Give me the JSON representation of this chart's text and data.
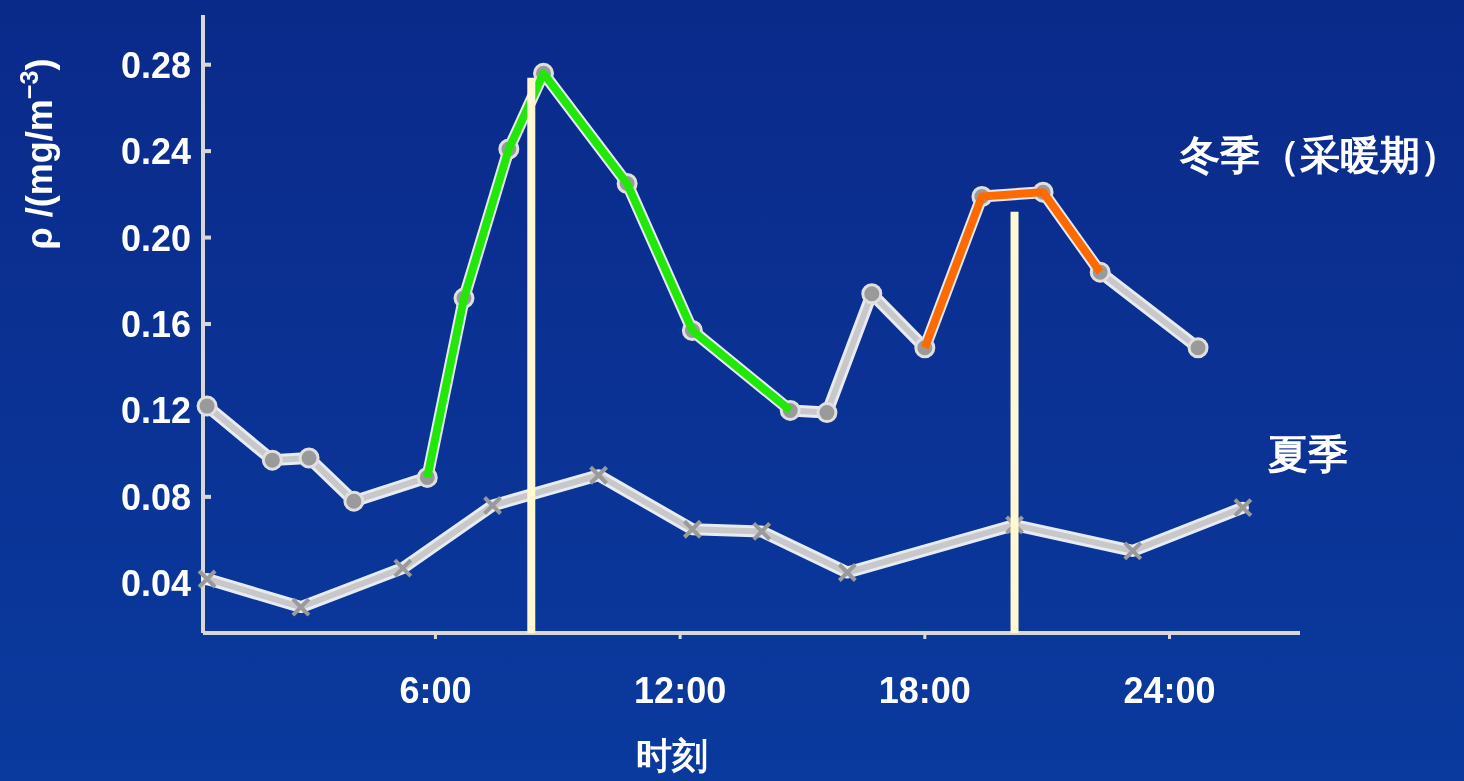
{
  "chart_data": {
    "type": "line",
    "xlabel": "时刻",
    "ylabel": "ρ /(mg/m$^{−3}$)",
    "xlim": [
      0.3,
      27.2
    ],
    "ylim": [
      0.017,
      0.303
    ],
    "xticks": [
      {
        "value": 6,
        "label": "6:00"
      },
      {
        "value": 12,
        "label": "12:00"
      },
      {
        "value": 18,
        "label": "18:00"
      },
      {
        "value": 24,
        "label": "24:00"
      }
    ],
    "yticks": [
      0.04,
      0.08,
      0.12,
      0.16,
      {
        "value": 0.2,
        "label": "0.20"
      },
      0.24,
      0.28
    ],
    "grid": false,
    "series": [
      {
        "name": "冬季（采暖期）",
        "color": "#c8c8c8",
        "marker": "circle",
        "x": [
          0.4,
          2.0,
          2.9,
          4.0,
          5.8,
          6.7,
          7.8,
          8.65,
          10.7,
          12.3,
          14.7,
          15.6,
          16.7,
          18.0,
          19.4,
          20.9,
          22.3,
          24.7
        ],
        "values": [
          0.122,
          0.097,
          0.098,
          0.078,
          0.089,
          0.172,
          0.241,
          0.276,
          0.225,
          0.157,
          0.12,
          0.119,
          0.174,
          0.149,
          0.219,
          0.221,
          0.184,
          0.149
        ]
      },
      {
        "name": "夏季",
        "color": "#c8c8c8",
        "marker": "cross",
        "x": [
          0.4,
          2.7,
          5.2,
          7.4,
          10.0,
          12.3,
          14.0,
          16.1,
          20.2,
          23.1,
          25.8
        ],
        "values": [
          0.042,
          0.029,
          0.047,
          0.076,
          0.09,
          0.065,
          0.064,
          0.045,
          0.067,
          0.055,
          0.075
        ]
      },
      {
        "color": "#22e80a",
        "marker": "none",
        "x": [
          5.8,
          6.7,
          7.8,
          8.65,
          10.7,
          12.3,
          14.7
        ],
        "values": [
          0.089,
          0.172,
          0.241,
          0.276,
          0.225,
          0.157,
          0.12
        ]
      },
      {
        "color": "#ff6a00",
        "marker": "none",
        "x": [
          18.0,
          19.4,
          20.9,
          22.3
        ],
        "values": [
          0.149,
          0.219,
          0.221,
          0.184
        ]
      },
      {
        "color": "#fff8d0",
        "marker": "none",
        "x": [
          8.35,
          8.35
        ],
        "values": [
          0.017,
          0.274
        ]
      },
      {
        "color": "#fff8d0",
        "marker": "none",
        "x": [
          20.2,
          20.2
        ],
        "values": [
          0.017,
          0.212
        ]
      }
    ]
  }
}
